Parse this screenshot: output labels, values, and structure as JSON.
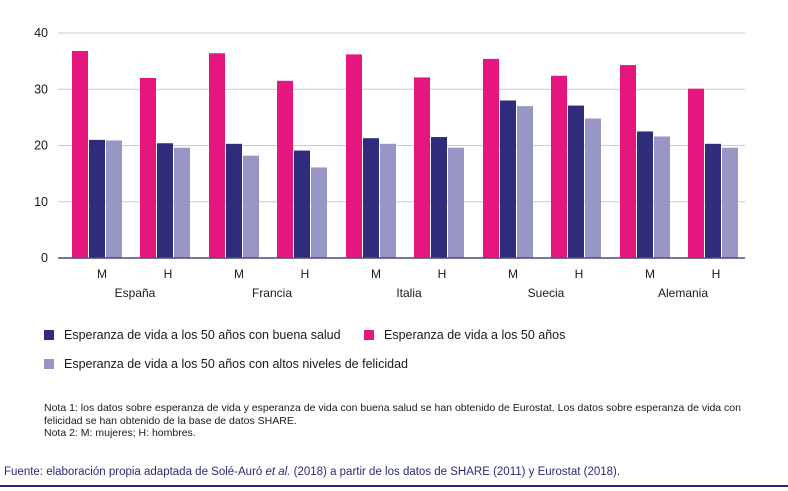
{
  "chart_data": {
    "type": "bar",
    "groups": [
      "España",
      "Francia",
      "Italia",
      "Suecia",
      "Alemania"
    ],
    "sexes": [
      "M",
      "H"
    ],
    "yticks": [
      0,
      10,
      20,
      30,
      40
    ],
    "ylim": [
      0,
      40
    ],
    "grid": true,
    "series": [
      {
        "key": "total",
        "name": "Esperanza de vida a los 50 años",
        "color": "#e5177f",
        "values": [
          [
            36.8,
            32.0
          ],
          [
            36.4,
            31.5
          ],
          [
            36.2,
            32.1
          ],
          [
            35.4,
            32.4
          ],
          [
            34.3,
            30.1
          ]
        ]
      },
      {
        "key": "health",
        "name": "Esperanza de vida a los 50 años con buena salud",
        "color": "#2e2c7b",
        "values": [
          [
            21.0,
            20.4
          ],
          [
            20.3,
            19.1
          ],
          [
            21.3,
            21.5
          ],
          [
            28.0,
            27.1
          ],
          [
            22.5,
            20.3
          ]
        ]
      },
      {
        "key": "happy",
        "name": "Esperanza de vida a los 50 años con altos niveles de felicidad",
        "color": "#9896c4",
        "values": [
          [
            20.9,
            19.6
          ],
          [
            18.2,
            16.1
          ],
          [
            20.3,
            19.6
          ],
          [
            27.0,
            24.8
          ],
          [
            21.6,
            19.6
          ]
        ]
      }
    ]
  },
  "legend": {
    "health": "Esperanza de vida a los 50 años con buena salud",
    "total": "Esperanza de vida a los 50 años",
    "happy": "Esperanza de vida a los 50 años con altos niveles de felicidad"
  },
  "notes": {
    "note1": "Nota 1: los datos sobre esperanza de vida y esperanza de vida con buena salud se han obtenido de Eurostat. Los datos sobre esperanza de vida con felicidad se han obtenido de la base de datos SHARE.",
    "note2": "Nota 2: M: mujeres; H: hombres."
  },
  "source": {
    "before": "Fuente: elaboración propia adaptada de Solé-Auró ",
    "italic": "et al.",
    "after": " (2018) a partir de los datos de SHARE (2011) y Eurostat (2018)."
  },
  "colors": {
    "grid": "#c9c9d6",
    "axis": "#4a4a80",
    "source": "#2a2a7c"
  }
}
